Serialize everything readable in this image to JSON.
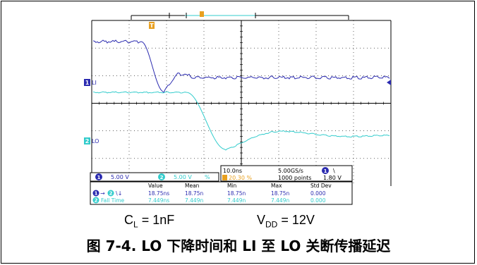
{
  "scope": {
    "ch1_marker": "1",
    "ch1_label": "LI",
    "ch2_marker": "2",
    "ch2_label": "LO",
    "trigger_marker": "T",
    "ch1_scale": "5.00 V",
    "ch2_scale": "5.00 V",
    "ch2_suffix": "%",
    "timebase": "10.0ns",
    "trigger_pos": "20.30 %",
    "sample_rate": "5.00GS/s",
    "record_length": "1000 points",
    "trigger_ch": "1",
    "trigger_slope": "\\",
    "trigger_level": "1.80 V",
    "meas_headers": [
      "Value",
      "Mean",
      "Min",
      "Max",
      "Std Dev"
    ],
    "meas_row1": {
      "src_a": "1",
      "src_b": "2",
      "arrow": "→",
      "edges": "\\↓",
      "value": "18.75ns",
      "mean": "18.75n",
      "min": "18.75n",
      "max": "18.75n",
      "std": "0.000"
    },
    "meas_row2": {
      "src": "2",
      "name": "Fall Time",
      "value": "7.449ns",
      "mean": "7.449n",
      "min": "7.449n",
      "max": "7.449n",
      "std": "0.000"
    },
    "colors": {
      "ch1": "#2b2bb0",
      "ch2": "#33cccc",
      "trigger": "#e8a020",
      "grid": "#000000"
    }
  },
  "caption": {
    "cl_main": "C",
    "cl_sub": "L",
    "cl_rest": " = 1nF",
    "vdd_main": "V",
    "vdd_sub": "DD",
    "vdd_rest": " = 12V"
  },
  "figure_title": "图 7-4. LO 下降时间和 LI 至 LO 关断传播延迟"
}
